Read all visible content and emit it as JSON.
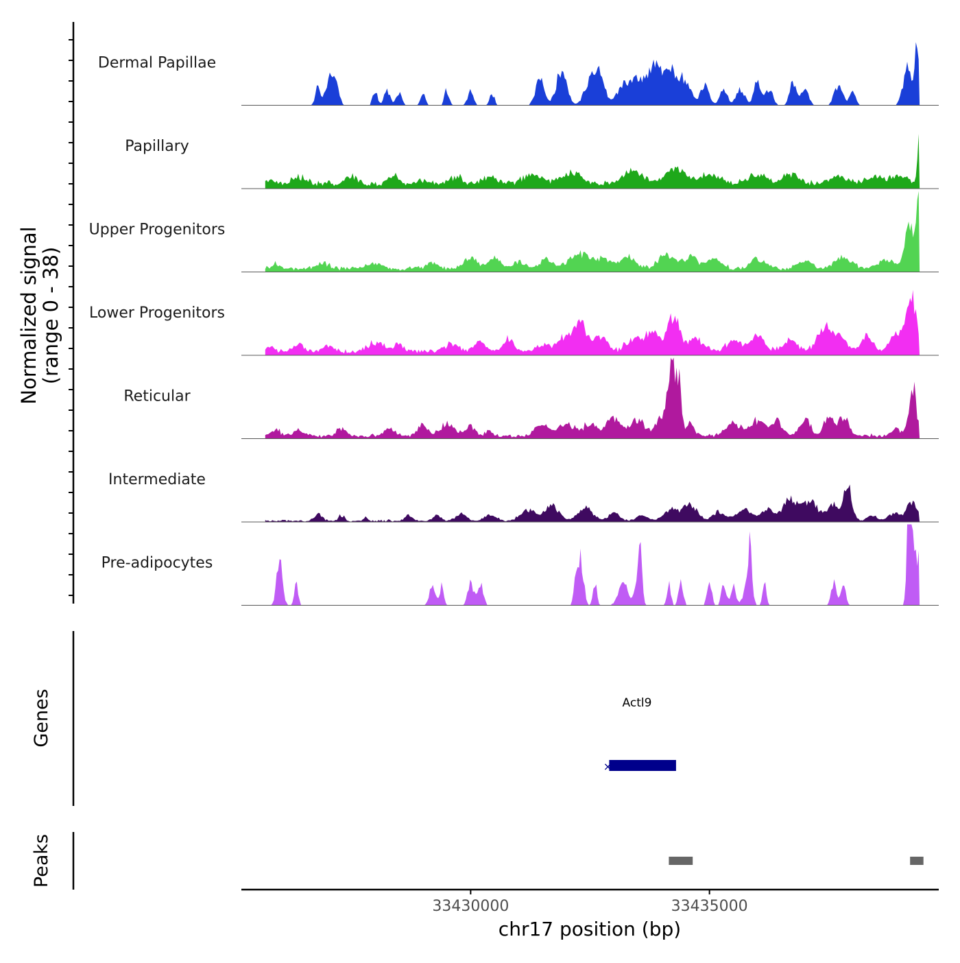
{
  "chart_data": {
    "type": "area",
    "title": "",
    "xlabel": "chr17 position (bp)",
    "ylabel_line1": "Normalized signal",
    "ylabel_line2": "(range 0 - 38)",
    "y_range": [
      0,
      38
    ],
    "x_range": [
      33425200,
      33439800
    ],
    "x_ticks": [
      33430000,
      33435000
    ],
    "x_tick_labels": [
      "33430000",
      "33435000"
    ],
    "tracks": [
      {
        "name": "Dermal Papillae",
        "color": "#1a3fd8",
        "base": 0,
        "noise": 0,
        "peaks": [
          [
            33426800,
            5,
            50
          ],
          [
            33427050,
            8,
            80
          ],
          [
            33427200,
            4,
            60
          ],
          [
            33428000,
            4,
            50
          ],
          [
            33428250,
            4,
            60
          ],
          [
            33428500,
            3,
            60
          ],
          [
            33429000,
            3,
            50
          ],
          [
            33429500,
            4,
            50
          ],
          [
            33430000,
            4,
            60
          ],
          [
            33430450,
            3,
            50
          ],
          [
            33431450,
            7,
            90
          ],
          [
            33431900,
            9,
            110
          ],
          [
            33432500,
            6,
            120
          ],
          [
            33432700,
            7,
            110
          ],
          [
            33433200,
            5,
            140
          ],
          [
            33433500,
            6,
            140
          ],
          [
            33433800,
            9,
            120
          ],
          [
            33434150,
            11,
            160
          ],
          [
            33434500,
            6,
            120
          ],
          [
            33434900,
            5,
            90
          ],
          [
            33435300,
            4,
            80
          ],
          [
            33435650,
            4,
            90
          ],
          [
            33436000,
            6,
            70
          ],
          [
            33436250,
            4,
            80
          ],
          [
            33436750,
            6,
            70
          ],
          [
            33437000,
            5,
            70
          ],
          [
            33437700,
            5,
            90
          ],
          [
            33438000,
            4,
            60
          ],
          [
            33439150,
            10,
            90
          ],
          [
            33439350,
            17,
            40
          ]
        ]
      },
      {
        "name": "Papillary",
        "color": "#1ea81a",
        "base": 1.2,
        "noise": 0.9,
        "peaks": [
          [
            33425800,
            1,
            100
          ],
          [
            33426400,
            2,
            150
          ],
          [
            33427500,
            2,
            120
          ],
          [
            33428400,
            2,
            100
          ],
          [
            33429000,
            1,
            100
          ],
          [
            33429700,
            2,
            120
          ],
          [
            33430400,
            2,
            150
          ],
          [
            33431300,
            2.5,
            200
          ],
          [
            33432100,
            3,
            200
          ],
          [
            33433400,
            3.5,
            200
          ],
          [
            33434300,
            4,
            200
          ],
          [
            33435000,
            2.5,
            200
          ],
          [
            33436000,
            2.5,
            200
          ],
          [
            33436700,
            2.5,
            180
          ],
          [
            33437700,
            2,
            200
          ],
          [
            33438500,
            2,
            200
          ],
          [
            33439000,
            2,
            150
          ],
          [
            33439380,
            12,
            30
          ]
        ]
      },
      {
        "name": "Upper Progenitors",
        "color": "#52d452",
        "base": 0.8,
        "noise": 0.8,
        "peaks": [
          [
            33425900,
            1,
            100
          ],
          [
            33426900,
            1.5,
            120
          ],
          [
            33428000,
            1.5,
            150
          ],
          [
            33429200,
            1.5,
            120
          ],
          [
            33430000,
            3,
            150
          ],
          [
            33430500,
            2.5,
            120
          ],
          [
            33431000,
            2,
            120
          ],
          [
            33431600,
            2.5,
            150
          ],
          [
            33432300,
            4,
            200
          ],
          [
            33432800,
            2.5,
            150
          ],
          [
            33433300,
            3,
            150
          ],
          [
            33434100,
            3.5,
            180
          ],
          [
            33434600,
            3,
            150
          ],
          [
            33435100,
            2.5,
            150
          ],
          [
            33436000,
            2.5,
            150
          ],
          [
            33437000,
            2,
            150
          ],
          [
            33437800,
            3,
            180
          ],
          [
            33438700,
            2.5,
            150
          ],
          [
            33439200,
            12,
            100
          ],
          [
            33439370,
            17,
            30
          ]
        ]
      },
      {
        "name": "Lower Progenitors",
        "color": "#f22ef2",
        "base": 0.9,
        "noise": 0.9,
        "peaks": [
          [
            33425800,
            1,
            100
          ],
          [
            33426400,
            2,
            120
          ],
          [
            33427000,
            1.5,
            100
          ],
          [
            33428000,
            2.5,
            150
          ],
          [
            33428500,
            1.5,
            120
          ],
          [
            33429600,
            2,
            150
          ],
          [
            33430200,
            2.5,
            120
          ],
          [
            33430800,
            3,
            120
          ],
          [
            33431500,
            2,
            120
          ],
          [
            33432000,
            4,
            180
          ],
          [
            33432300,
            7,
            120
          ],
          [
            33432700,
            4,
            150
          ],
          [
            33433400,
            3.5,
            150
          ],
          [
            33433800,
            5,
            150
          ],
          [
            33434250,
            10,
            120
          ],
          [
            33434700,
            3.5,
            150
          ],
          [
            33435500,
            3,
            150
          ],
          [
            33436000,
            4,
            150
          ],
          [
            33436700,
            3,
            150
          ],
          [
            33437400,
            6,
            150
          ],
          [
            33437700,
            4,
            150
          ],
          [
            33438300,
            4,
            120
          ],
          [
            33438800,
            2,
            100
          ],
          [
            33439000,
            5,
            120
          ],
          [
            33439250,
            14,
            100
          ]
        ]
      },
      {
        "name": "Reticular",
        "color": "#b0199e",
        "base": 0.6,
        "noise": 1.0,
        "peaks": [
          [
            33425900,
            2,
            80
          ],
          [
            33426400,
            1.5,
            100
          ],
          [
            33427300,
            2,
            100
          ],
          [
            33428300,
            2,
            100
          ],
          [
            33429000,
            3,
            100
          ],
          [
            33429500,
            3,
            150
          ],
          [
            33430000,
            2.5,
            100
          ],
          [
            33430400,
            1.5,
            60
          ],
          [
            33431500,
            3,
            150
          ],
          [
            33432000,
            3.5,
            150
          ],
          [
            33432500,
            3,
            150
          ],
          [
            33433000,
            4.5,
            150
          ],
          [
            33433500,
            4,
            150
          ],
          [
            33434000,
            5,
            120
          ],
          [
            33434200,
            18,
            70
          ],
          [
            33434350,
            15,
            60
          ],
          [
            33434600,
            3,
            80
          ],
          [
            33435500,
            3.5,
            150
          ],
          [
            33436000,
            4,
            150
          ],
          [
            33436400,
            4,
            120
          ],
          [
            33437000,
            4,
            120
          ],
          [
            33437500,
            5,
            100
          ],
          [
            33437800,
            5,
            100
          ],
          [
            33438900,
            2,
            80
          ],
          [
            33439250,
            13,
            80
          ]
        ]
      },
      {
        "name": "Intermediate",
        "color": "#3f0a60",
        "base": 0.2,
        "noise": 0.5,
        "peaks": [
          [
            33426800,
            2,
            80
          ],
          [
            33427300,
            1.5,
            60
          ],
          [
            33427800,
            1,
            40
          ],
          [
            33428700,
            1.5,
            80
          ],
          [
            33429300,
            1.5,
            80
          ],
          [
            33429800,
            2,
            100
          ],
          [
            33430400,
            1.5,
            120
          ],
          [
            33431200,
            3,
            150
          ],
          [
            33431700,
            4,
            150
          ],
          [
            33432400,
            3.5,
            150
          ],
          [
            33433000,
            2,
            120
          ],
          [
            33433600,
            1.5,
            120
          ],
          [
            33434200,
            3,
            150
          ],
          [
            33434600,
            4,
            150
          ],
          [
            33435200,
            2.5,
            120
          ],
          [
            33435700,
            3,
            150
          ],
          [
            33436200,
            3,
            150
          ],
          [
            33436700,
            6,
            150
          ],
          [
            33437100,
            5,
            150
          ],
          [
            33437600,
            4,
            150
          ],
          [
            33437900,
            10,
            80
          ],
          [
            33438400,
            1.5,
            100
          ],
          [
            33438900,
            2,
            150
          ],
          [
            33439250,
            5,
            100
          ]
        ]
      },
      {
        "name": "Pre-adipocytes",
        "color": "#c05cf5",
        "base": 0,
        "noise": 0,
        "peaks": [
          [
            33426000,
            13,
            60
          ],
          [
            33426350,
            6,
            40
          ],
          [
            33429200,
            6,
            60
          ],
          [
            33429400,
            6,
            40
          ],
          [
            33430000,
            6,
            60
          ],
          [
            33430200,
            6,
            60
          ],
          [
            33432200,
            6,
            40
          ],
          [
            33432300,
            13,
            60
          ],
          [
            33432600,
            6,
            40
          ],
          [
            33433200,
            6,
            100
          ],
          [
            33433500,
            6,
            60
          ],
          [
            33433550,
            13,
            40
          ],
          [
            33434150,
            6,
            40
          ],
          [
            33434400,
            6,
            50
          ],
          [
            33435000,
            6,
            50
          ],
          [
            33435300,
            6,
            50
          ],
          [
            33435500,
            6,
            50
          ],
          [
            33435800,
            6,
            80
          ],
          [
            33435850,
            13,
            30
          ],
          [
            33436150,
            6,
            40
          ],
          [
            33437600,
            6,
            50
          ],
          [
            33437800,
            6,
            50
          ],
          [
            33439180,
            32,
            40
          ],
          [
            33439280,
            18,
            40
          ],
          [
            33439380,
            13,
            30
          ]
        ]
      }
    ],
    "gene": {
      "name": "Actl9",
      "start": 33432900,
      "end": 33434300,
      "color": "#00008b"
    },
    "peaks_track": [
      [
        33434150,
        33434650
      ],
      [
        33439200,
        33439480
      ]
    ],
    "panel_labels": {
      "genes": "Genes",
      "peaks": "Peaks"
    }
  }
}
